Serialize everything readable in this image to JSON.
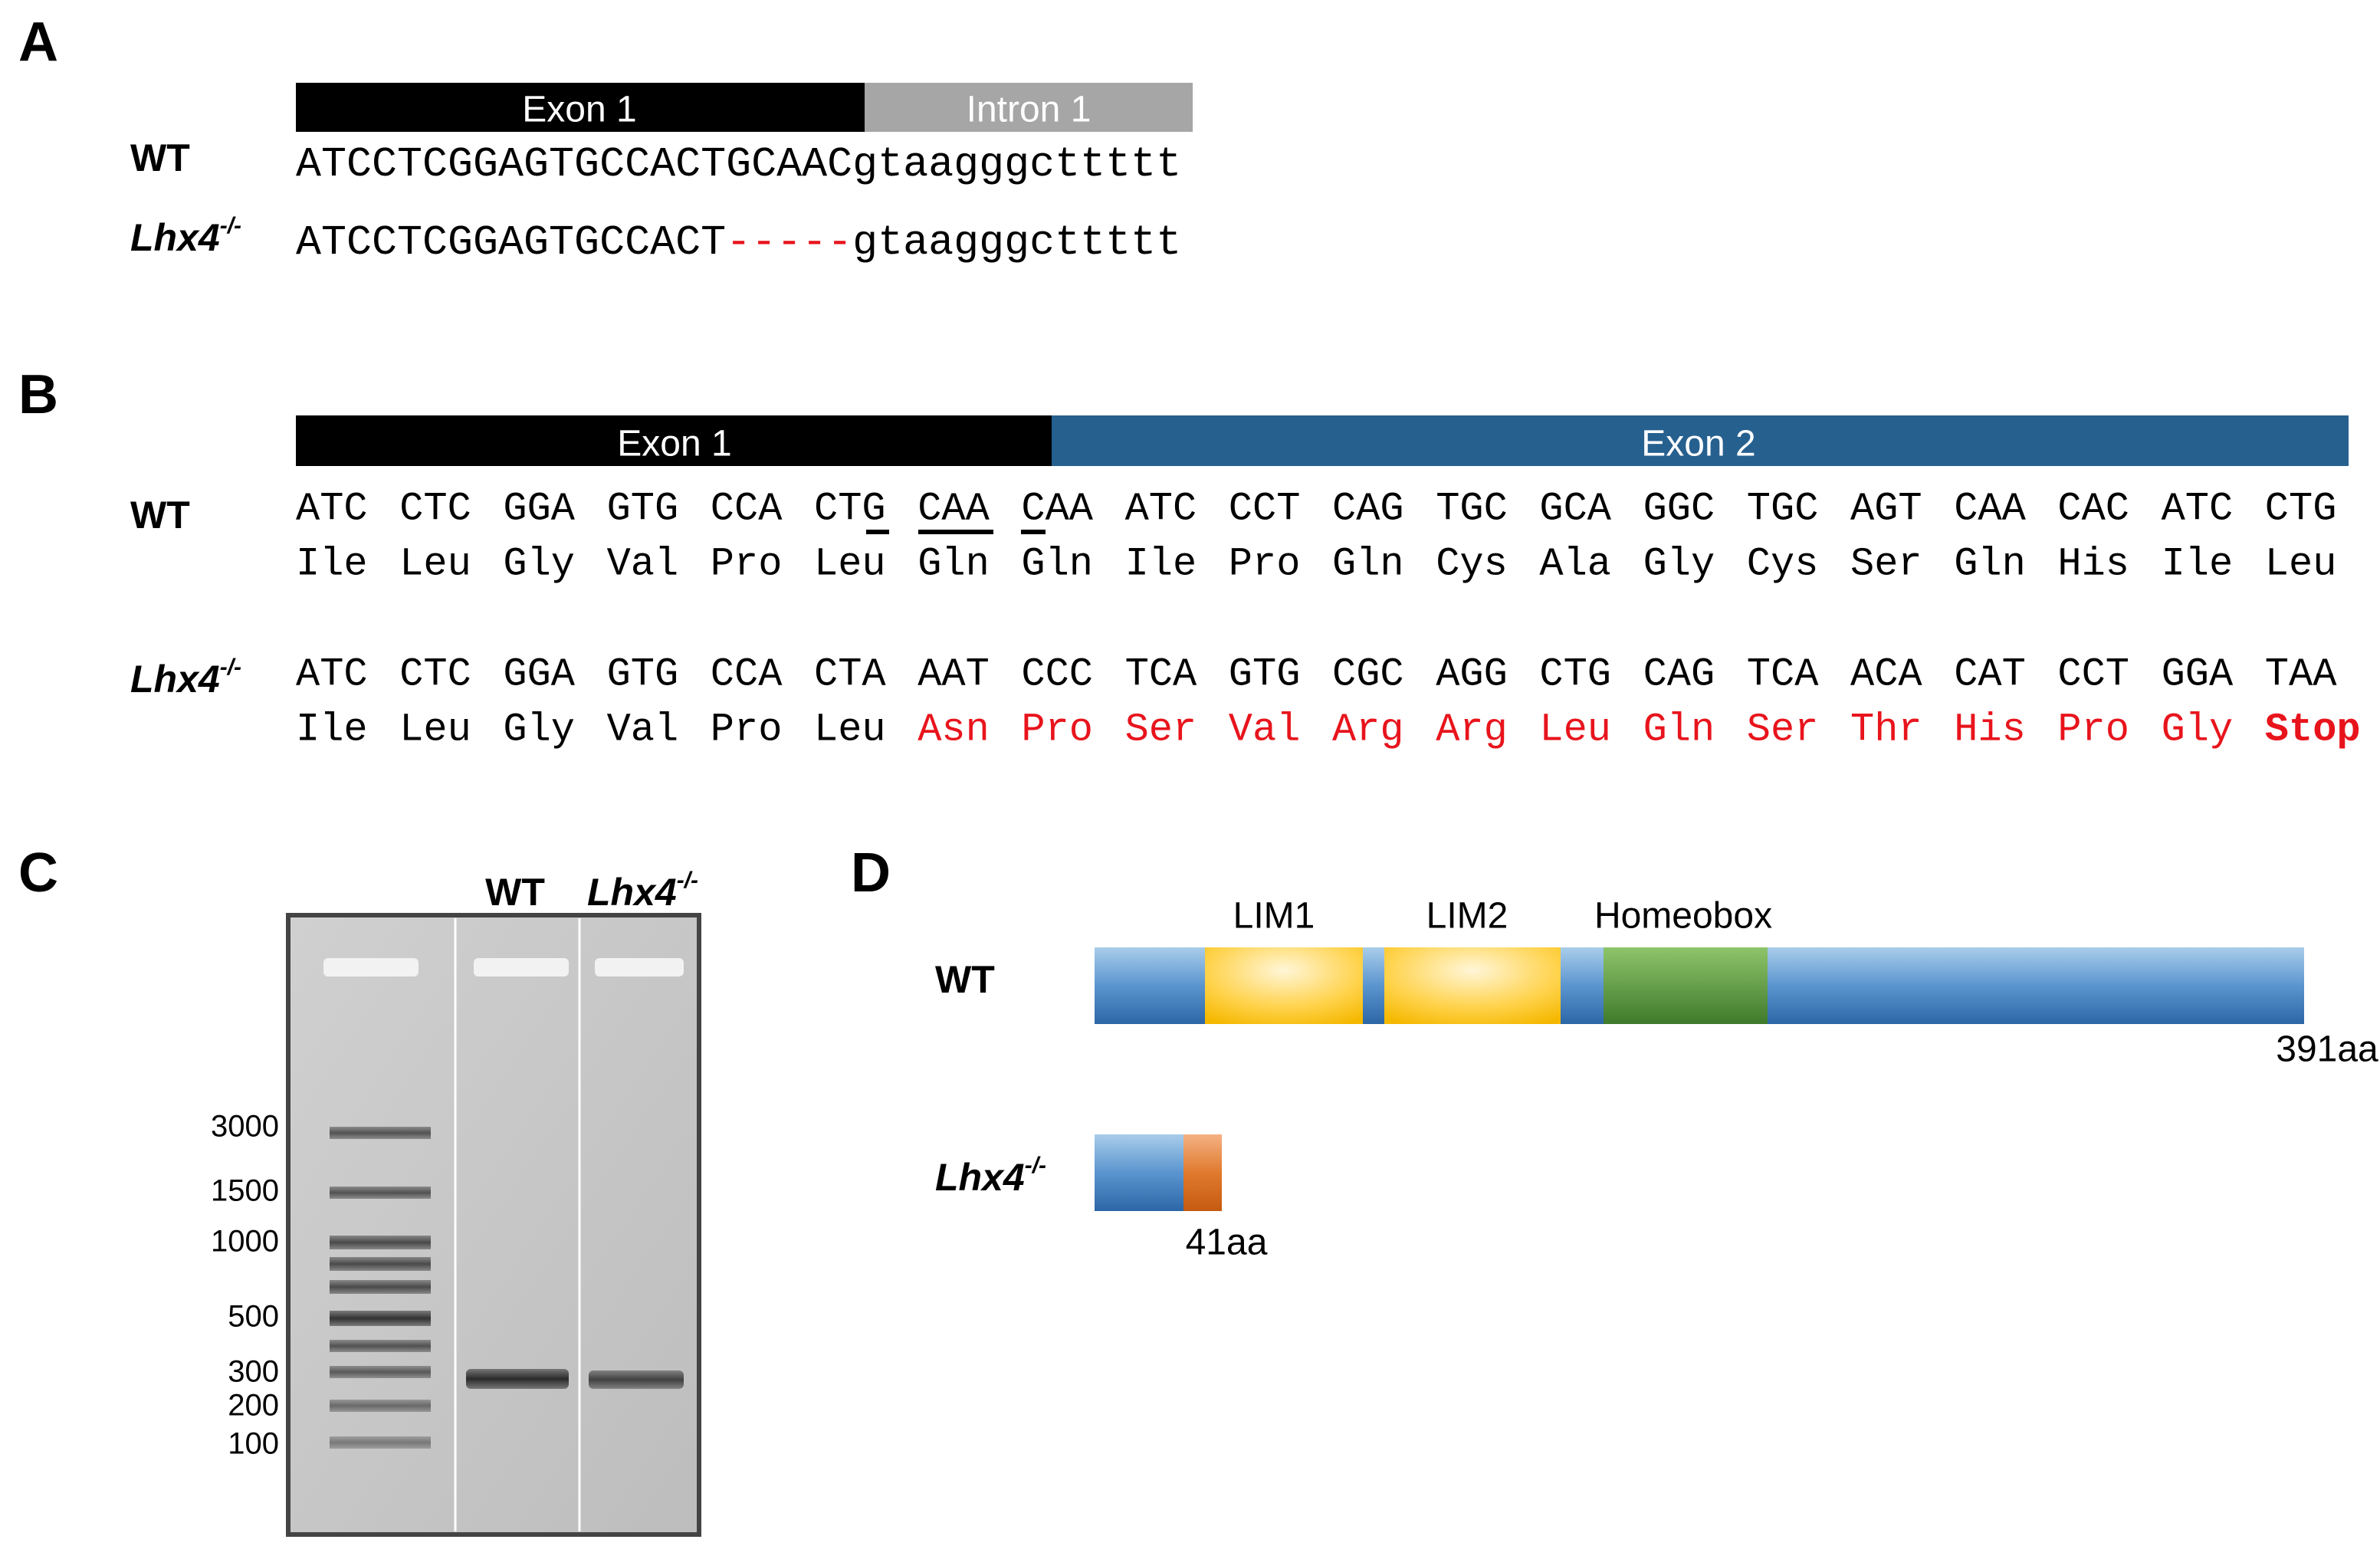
{
  "panel_a": {
    "letter": "A",
    "exon": "Exon 1",
    "intron": "Intron 1",
    "wt_label": "WT",
    "mut_label": "Lhx4",
    "mut_sup": "-/-",
    "wt_exon_seq": "ATCCTCGGAGTGCCACTGCAAC",
    "wt_intron_seq": "gtaagggcttttt",
    "mut_exon_seq": "ATCCTCGGAGTGCCACT",
    "mut_deletion": "-----",
    "mut_intron_seq": "gtaagggcttttt"
  },
  "panel_b": {
    "letter": "B",
    "exon1": "Exon 1",
    "exon2": "Exon 2",
    "wt_label": "WT",
    "mut_label": "Lhx4",
    "mut_sup": "-/-",
    "wt_codons": [
      "ATC",
      "CTC",
      "GGA",
      "GTG",
      "CCA",
      "CTG",
      "CAA",
      "CAA",
      "ATC",
      "CCT",
      "CAG",
      "TGC",
      "GCA",
      "GGC",
      "TGC",
      "AGT",
      "CAA",
      "CAC",
      "ATC",
      "CTG"
    ],
    "wt_amino_acids": [
      "Ile",
      "Leu",
      "Gly",
      "Val",
      "Pro",
      "Leu",
      "Gln",
      "Gln",
      "Ile",
      "Pro",
      "Gln",
      "Cys",
      "Ala",
      "Gly",
      "Cys",
      "Ser",
      "Gln",
      "His",
      "Ile",
      "Leu"
    ],
    "mut_codons": [
      "ATC",
      "CTC",
      "GGA",
      "GTG",
      "CCA",
      "CTA",
      "AAT",
      "CCC",
      "TCA",
      "GTG",
      "CGC",
      "AGG",
      "CTG",
      "CAG",
      "TCA",
      "ACA",
      "CAT",
      "CCT",
      "GGA",
      "TAA"
    ],
    "mut_amino_acids": [
      "Ile",
      "Leu",
      "Gly",
      "Val",
      "Pro",
      "Leu",
      "Asn",
      "Pro",
      "Ser",
      "Val",
      "Arg",
      "Arg",
      "Leu",
      "Gln",
      "Ser",
      "Thr",
      "His",
      "Pro",
      "Gly",
      "Stop"
    ]
  },
  "panel_c": {
    "letter": "C",
    "wt_label": "WT",
    "mut_label": "Lhx4",
    "mut_sup": "-/-",
    "ladder": [
      3000,
      1500,
      1000,
      500,
      300,
      200,
      100
    ]
  },
  "panel_d": {
    "letter": "D",
    "domains": [
      "LIM1",
      "LIM2",
      "Homeobox"
    ],
    "wt_label": "WT",
    "wt_length": "391aa",
    "mut_label": "Lhx4",
    "mut_sup": "-/-",
    "mut_length": "41aa"
  }
}
